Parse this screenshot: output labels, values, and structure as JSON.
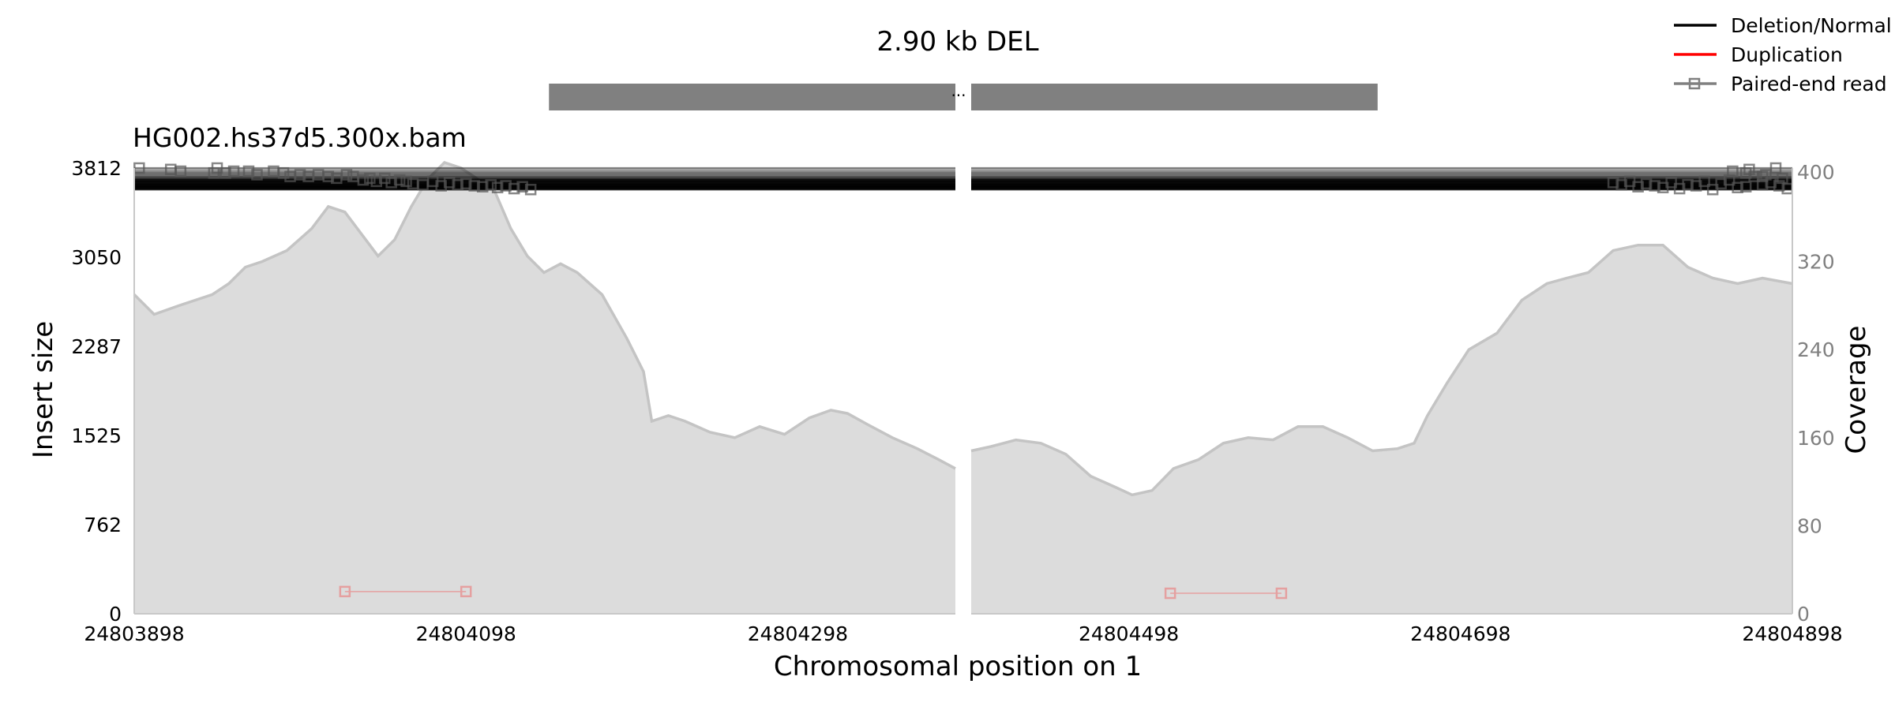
{
  "chart_data": {
    "type": "area",
    "title": "2.90 kb DEL",
    "sample_label": "HG002.hs37d5.300x.bam",
    "xlabel": "Chromosomal position on 1",
    "ylabel_left": "Insert size",
    "ylabel_right": "Coverage",
    "break_marker": "...",
    "grid": false,
    "legend_position": "top-right",
    "legend": [
      {
        "label": "Deletion/Normal",
        "color": "#000000",
        "marker": "line"
      },
      {
        "label": "Duplication",
        "color": "#ff0000",
        "marker": "line"
      },
      {
        "label": "Paired-end read",
        "color": "#808080",
        "marker": "line-square"
      }
    ],
    "colors": {
      "coverage_fill": "#dcdcdc",
      "coverage_line": "#c4c4c4",
      "dup_read": "#e5a0a0",
      "gene_bar": "#808080"
    },
    "x_ticks": [
      24803898,
      24804098,
      24804298,
      24804498,
      24804698,
      24804898
    ],
    "x_tick_labels": [
      "24803898",
      "24804098",
      "24804298",
      "24804498",
      "24804698",
      "24804898"
    ],
    "y_left_ticks": [
      0,
      762,
      1525,
      2287,
      3050,
      3812
    ],
    "y_left_tick_labels": [
      "0",
      "762",
      "1525",
      "2287",
      "3050",
      "3812"
    ],
    "y_left_range": [
      0,
      3812
    ],
    "y_right_ticks": [
      0,
      80,
      160,
      240,
      320,
      400
    ],
    "y_right_tick_labels": [
      "0",
      "80",
      "160",
      "240",
      "320",
      "400"
    ],
    "y_right_range": [
      0,
      405
    ],
    "x_range": [
      24803898,
      24804898
    ],
    "segments": [
      [
        24803898,
        24804393
      ],
      [
        24804403,
        24804898
      ]
    ],
    "gene_bars": [
      [
        24804148,
        24804393
      ],
      [
        24804403,
        24804648
      ]
    ],
    "coverage": {
      "left": [
        [
          24803898,
          290
        ],
        [
          24803910,
          272
        ],
        [
          24803925,
          280
        ],
        [
          24803945,
          290
        ],
        [
          24803955,
          300
        ],
        [
          24803965,
          315
        ],
        [
          24803975,
          320
        ],
        [
          24803990,
          330
        ],
        [
          24804005,
          350
        ],
        [
          24804015,
          370
        ],
        [
          24804025,
          365
        ],
        [
          24804035,
          345
        ],
        [
          24804045,
          325
        ],
        [
          24804055,
          340
        ],
        [
          24804065,
          370
        ],
        [
          24804075,
          395
        ],
        [
          24804085,
          410
        ],
        [
          24804095,
          405
        ],
        [
          24804105,
          395
        ],
        [
          24804115,
          385
        ],
        [
          24804125,
          350
        ],
        [
          24804135,
          325
        ],
        [
          24804145,
          310
        ],
        [
          24804155,
          318
        ],
        [
          24804165,
          310
        ],
        [
          24804180,
          290
        ],
        [
          24804195,
          250
        ],
        [
          24804205,
          220
        ],
        [
          24804210,
          175
        ],
        [
          24804220,
          180
        ],
        [
          24804230,
          175
        ],
        [
          24804245,
          165
        ],
        [
          24804260,
          160
        ],
        [
          24804275,
          170
        ],
        [
          24804290,
          163
        ],
        [
          24804305,
          178
        ],
        [
          24804318,
          185
        ],
        [
          24804328,
          182
        ],
        [
          24804340,
          172
        ],
        [
          24804355,
          160
        ],
        [
          24804370,
          150
        ],
        [
          24804383,
          140
        ],
        [
          24804393,
          132
        ]
      ],
      "right": [
        [
          24804403,
          148
        ],
        [
          24804415,
          152
        ],
        [
          24804430,
          158
        ],
        [
          24804445,
          155
        ],
        [
          24804460,
          145
        ],
        [
          24804475,
          125
        ],
        [
          24804490,
          115
        ],
        [
          24804500,
          108
        ],
        [
          24804512,
          112
        ],
        [
          24804525,
          132
        ],
        [
          24804540,
          140
        ],
        [
          24804555,
          155
        ],
        [
          24804570,
          160
        ],
        [
          24804585,
          158
        ],
        [
          24804600,
          170
        ],
        [
          24804615,
          170
        ],
        [
          24804630,
          160
        ],
        [
          24804645,
          148
        ],
        [
          24804660,
          150
        ],
        [
          24804670,
          155
        ],
        [
          24804678,
          180
        ],
        [
          24804690,
          210
        ],
        [
          24804703,
          240
        ],
        [
          24804720,
          255
        ],
        [
          24804735,
          285
        ],
        [
          24804750,
          300
        ],
        [
          24804762,
          305
        ],
        [
          24804775,
          310
        ],
        [
          24804790,
          330
        ],
        [
          24804805,
          335
        ],
        [
          24804820,
          335
        ],
        [
          24804835,
          315
        ],
        [
          24804850,
          305
        ],
        [
          24804865,
          300
        ],
        [
          24804880,
          305
        ],
        [
          24804898,
          300
        ]
      ]
    },
    "deletion_reads": [
      {
        "insert_size": 3812,
        "count": 3
      },
      {
        "insert_size": 3800,
        "count": 2
      },
      {
        "insert_size": 3785,
        "count": 3
      },
      {
        "insert_size": 3770,
        "count": 4
      },
      {
        "insert_size": 3755,
        "count": 4
      },
      {
        "insert_size": 3740,
        "count": 5
      },
      {
        "insert_size": 3725,
        "count": 6
      },
      {
        "insert_size": 3710,
        "count": 8
      },
      {
        "insert_size": 3698,
        "count": 10
      },
      {
        "insert_size": 3688,
        "count": 10
      },
      {
        "insert_size": 3678,
        "count": 12
      },
      {
        "insert_size": 3668,
        "count": 14
      },
      {
        "insert_size": 3660,
        "count": 14
      },
      {
        "insert_size": 3652,
        "count": 12
      },
      {
        "insert_size": 3645,
        "count": 10
      },
      {
        "insert_size": 3636,
        "count": 8
      },
      {
        "insert_size": 3628,
        "count": 6
      }
    ],
    "read_marker_positions": {
      "left": [
        [
          24803901,
          3812
        ],
        [
          24803920,
          3800
        ],
        [
          24803926,
          3785
        ],
        [
          24803946,
          3770
        ],
        [
          24803948,
          3812
        ],
        [
          24803953,
          3770
        ],
        [
          24803958,
          3785
        ],
        [
          24803967,
          3785
        ],
        [
          24803972,
          3755
        ],
        [
          24803982,
          3785
        ],
        [
          24803988,
          3770
        ],
        [
          24803992,
          3740
        ],
        [
          24803998,
          3755
        ],
        [
          24804003,
          3740
        ],
        [
          24804009,
          3755
        ],
        [
          24804015,
          3740
        ],
        [
          24804020,
          3725
        ],
        [
          24804026,
          3755
        ],
        [
          24804030,
          3740
        ],
        [
          24804036,
          3710
        ],
        [
          24804040,
          3725
        ],
        [
          24804044,
          3698
        ],
        [
          24804049,
          3725
        ],
        [
          24804053,
          3688
        ],
        [
          24804058,
          3710
        ],
        [
          24804062,
          3698
        ],
        [
          24804066,
          3678
        ],
        [
          24804072,
          3668
        ],
        [
          24804078,
          3698
        ],
        [
          24804083,
          3660
        ],
        [
          24804088,
          3688
        ],
        [
          24804093,
          3668
        ],
        [
          24804098,
          3678
        ],
        [
          24804103,
          3660
        ],
        [
          24804108,
          3652
        ],
        [
          24804113,
          3668
        ],
        [
          24804117,
          3645
        ],
        [
          24804122,
          3660
        ],
        [
          24804127,
          3636
        ],
        [
          24804132,
          3652
        ],
        [
          24804137,
          3628
        ]
      ],
      "right": [
        [
          24804790,
          3688
        ],
        [
          24804795,
          3668
        ],
        [
          24804800,
          3698
        ],
        [
          24804805,
          3652
        ],
        [
          24804810,
          3678
        ],
        [
          24804815,
          3660
        ],
        [
          24804820,
          3645
        ],
        [
          24804825,
          3688
        ],
        [
          24804830,
          3636
        ],
        [
          24804835,
          3670
        ],
        [
          24804840,
          3660
        ],
        [
          24804845,
          3698
        ],
        [
          24804850,
          3628
        ],
        [
          24804855,
          3678
        ],
        [
          24804860,
          3710
        ],
        [
          24804865,
          3645
        ],
        [
          24804870,
          3652
        ],
        [
          24804875,
          3740
        ],
        [
          24804880,
          3668
        ],
        [
          24804885,
          3688
        ],
        [
          24804890,
          3660
        ],
        [
          24804895,
          3636
        ],
        [
          24804862,
          3785
        ],
        [
          24804870,
          3770
        ],
        [
          24804880,
          3740
        ],
        [
          24804888,
          3812
        ],
        [
          24804872,
          3800
        ],
        [
          24804882,
          3755
        ],
        [
          24804892,
          3725
        ]
      ]
    },
    "duplication_reads": [
      {
        "start": 24804025,
        "end": 24804098,
        "insert_size": 190
      },
      {
        "start": 24804523,
        "end": 24804590,
        "insert_size": 175
      }
    ]
  }
}
